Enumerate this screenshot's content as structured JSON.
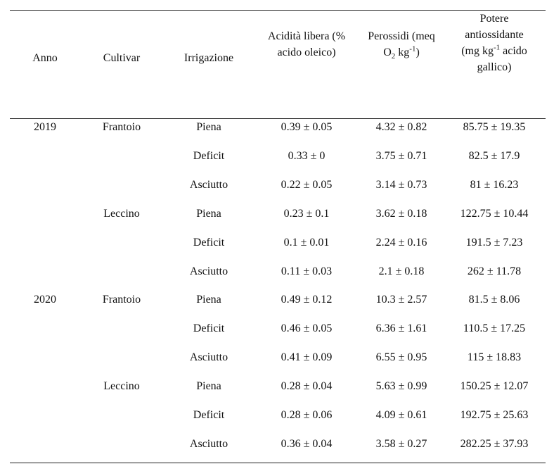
{
  "table": {
    "headers": {
      "anno": "Anno",
      "cultivar": "Cultivar",
      "irrigazione": "Irrigazione",
      "acidita_line1": "Acidità libera (%",
      "acidita_line2": "acido oleico)",
      "perossidi_line1": "Perossidi (meq",
      "perossidi_o": "O",
      "perossidi_o_sub": "2",
      "perossidi_kg": " kg",
      "perossidi_kg_sup": "-1",
      "perossidi_close": ")",
      "potere_line1": "Potere",
      "potere_line2": "antiossidante",
      "potere_line3_a": "(mg kg",
      "potere_line3_sup": "-1",
      "potere_line3_b": " acido",
      "potere_line4": "gallico)"
    },
    "rows": [
      {
        "anno": "2019",
        "cultivar": "Frantoio",
        "irrigazione": "Piena",
        "acidita": "0.39 ± 0.05",
        "perossidi": "4.32 ± 0.82",
        "potere": "85.75 ± 19.35"
      },
      {
        "anno": "",
        "cultivar": "",
        "irrigazione": "Deficit",
        "acidita": "0.33 ± 0",
        "perossidi": "3.75 ± 0.71",
        "potere": "82.5 ± 17.9"
      },
      {
        "anno": "",
        "cultivar": "",
        "irrigazione": "Asciutto",
        "acidita": "0.22 ± 0.05",
        "perossidi": "3.14 ± 0.73",
        "potere": "81 ± 16.23"
      },
      {
        "anno": "",
        "cultivar": "Leccino",
        "irrigazione": "Piena",
        "acidita": "0.23 ± 0.1",
        "perossidi": "3.62 ± 0.18",
        "potere": "122.75 ± 10.44"
      },
      {
        "anno": "",
        "cultivar": "",
        "irrigazione": "Deficit",
        "acidita": "0.1 ± 0.01",
        "perossidi": "2.24 ± 0.16",
        "potere": "191.5 ± 7.23"
      },
      {
        "anno": "",
        "cultivar": "",
        "irrigazione": "Asciutto",
        "acidita": "0.11 ± 0.03",
        "perossidi": "2.1 ± 0.18",
        "potere": "262 ± 11.78"
      },
      {
        "anno": "2020",
        "cultivar": "Frantoio",
        "irrigazione": "Piena",
        "acidita": "0.49 ± 0.12",
        "perossidi": "10.3 ± 2.57",
        "potere": "81.5 ± 8.06"
      },
      {
        "anno": "",
        "cultivar": "",
        "irrigazione": "Deficit",
        "acidita": "0.46 ± 0.05",
        "perossidi": "6.36 ± 1.61",
        "potere": "110.5 ± 17.25"
      },
      {
        "anno": "",
        "cultivar": "",
        "irrigazione": "Asciutto",
        "acidita": "0.41 ± 0.09",
        "perossidi": "6.55 ± 0.95",
        "potere": "115 ± 18.83"
      },
      {
        "anno": "",
        "cultivar": "Leccino",
        "irrigazione": "Piena",
        "acidita": "0.28 ± 0.04",
        "perossidi": "5.63 ± 0.99",
        "potere": "150.25 ± 12.07"
      },
      {
        "anno": "",
        "cultivar": "",
        "irrigazione": "Deficit",
        "acidita": "0.28 ± 0.06",
        "perossidi": "4.09 ± 0.61",
        "potere": "192.75 ± 25.63"
      },
      {
        "anno": "",
        "cultivar": "",
        "irrigazione": "Asciutto",
        "acidita": "0.36 ± 0.04",
        "perossidi": "3.58 ± 0.27",
        "potere": "282.25 ± 37.93"
      }
    ]
  }
}
